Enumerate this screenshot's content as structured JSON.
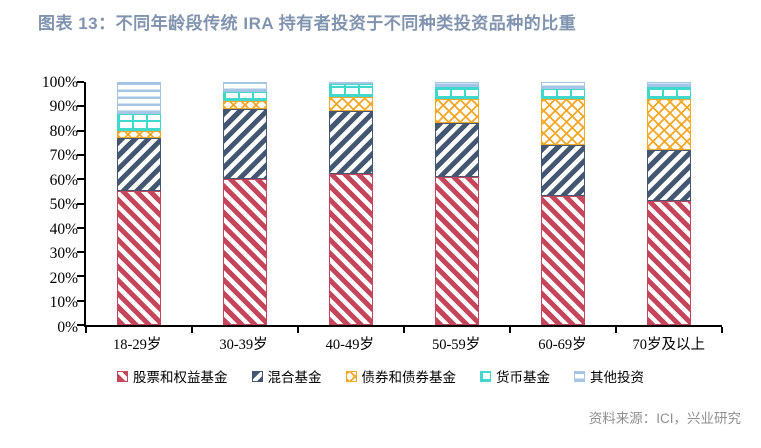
{
  "source_note": "资料来源：ICI，兴业研究",
  "colors": {
    "title": "#8094B0",
    "axis": "#000000",
    "source_text": "#8F8F8F"
  },
  "chart_data": {
    "type": "bar",
    "variant": "stacked-100-percent",
    "title": "图表 13：不同年龄段传统 IRA 持有者投资于不同种类投资品种的比重",
    "categories": [
      "18-29岁",
      "30-39岁",
      "40-49岁",
      "50-59岁",
      "60-69岁",
      "70岁及以上"
    ],
    "series": [
      {
        "name": "股票和权益基金",
        "color": "#C5455A",
        "pattern": "down-diagonal-stripes",
        "values": [
          55,
          60,
          62,
          61,
          53,
          51
        ]
      },
      {
        "name": "混合基金",
        "color": "#435672",
        "pattern": "up-diagonal-stripes",
        "values": [
          22,
          29,
          26,
          22,
          21,
          21
        ]
      },
      {
        "name": "债券和债券基金",
        "color": "#F5A623",
        "pattern": "crosshatch",
        "values": [
          3,
          3,
          6,
          10,
          19,
          21
        ]
      },
      {
        "name": "货币基金",
        "color": "#3FD8CC",
        "pattern": "grid",
        "values": [
          7,
          4,
          5,
          5,
          4,
          5
        ]
      },
      {
        "name": "其他投资",
        "color": "#A6C4E4",
        "pattern": "horizontal-stripes",
        "values": [
          13,
          4,
          1,
          2,
          3,
          2
        ]
      }
    ],
    "y_axis": {
      "min": 0,
      "max": 100,
      "step": 10,
      "tick_suffix": "%"
    },
    "ylim": [
      0,
      100
    ],
    "grid": false,
    "legend_position": "bottom"
  }
}
